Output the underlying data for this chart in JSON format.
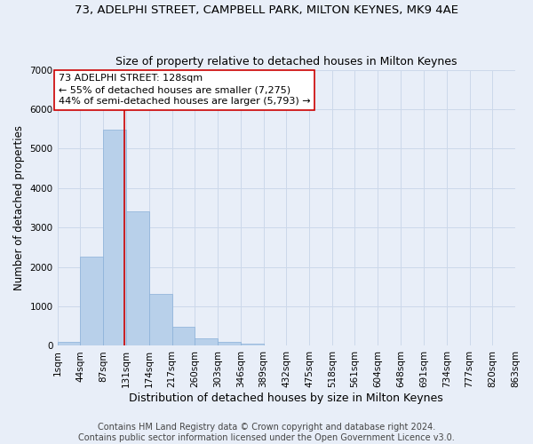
{
  "title": "73, ADELPHI STREET, CAMPBELL PARK, MILTON KEYNES, MK9 4AE",
  "subtitle": "Size of property relative to detached houses in Milton Keynes",
  "xlabel": "Distribution of detached houses by size in Milton Keynes",
  "ylabel": "Number of detached properties",
  "footer_line1": "Contains HM Land Registry data © Crown copyright and database right 2024.",
  "footer_line2": "Contains public sector information licensed under the Open Government Licence v3.0.",
  "bar_values": [
    100,
    2270,
    5480,
    3420,
    1310,
    490,
    195,
    100,
    60,
    0,
    0,
    0,
    0,
    0,
    0,
    0,
    0,
    0,
    0,
    0
  ],
  "bin_edges": [
    1,
    44,
    87,
    131,
    174,
    217,
    260,
    303,
    346,
    389,
    432,
    475,
    518,
    561,
    604,
    648,
    691,
    734,
    777,
    820,
    863
  ],
  "tick_labels": [
    "1sqm",
    "44sqm",
    "87sqm",
    "131sqm",
    "174sqm",
    "217sqm",
    "260sqm",
    "303sqm",
    "346sqm",
    "389sqm",
    "432sqm",
    "475sqm",
    "518sqm",
    "561sqm",
    "604sqm",
    "648sqm",
    "691sqm",
    "734sqm",
    "777sqm",
    "820sqm",
    "863sqm"
  ],
  "bar_color": "#b8d0ea",
  "bar_edge_color": "#8ab0d8",
  "grid_color": "#ccd8ea",
  "vline_x": 128,
  "vline_color": "#cc0000",
  "annotation_text": "73 ADELPHI STREET: 128sqm\n← 55% of detached houses are smaller (7,275)\n44% of semi-detached houses are larger (5,793) →",
  "annotation_box_color": "#ffffff",
  "annotation_box_edge": "#cc0000",
  "ylim": [
    0,
    7000
  ],
  "yticks": [
    0,
    1000,
    2000,
    3000,
    4000,
    5000,
    6000,
    7000
  ],
  "title_fontsize": 9.5,
  "subtitle_fontsize": 9,
  "axis_label_fontsize": 8.5,
  "tick_fontsize": 7.5,
  "annotation_fontsize": 8,
  "footer_fontsize": 7,
  "background_color": "#e8eef8"
}
